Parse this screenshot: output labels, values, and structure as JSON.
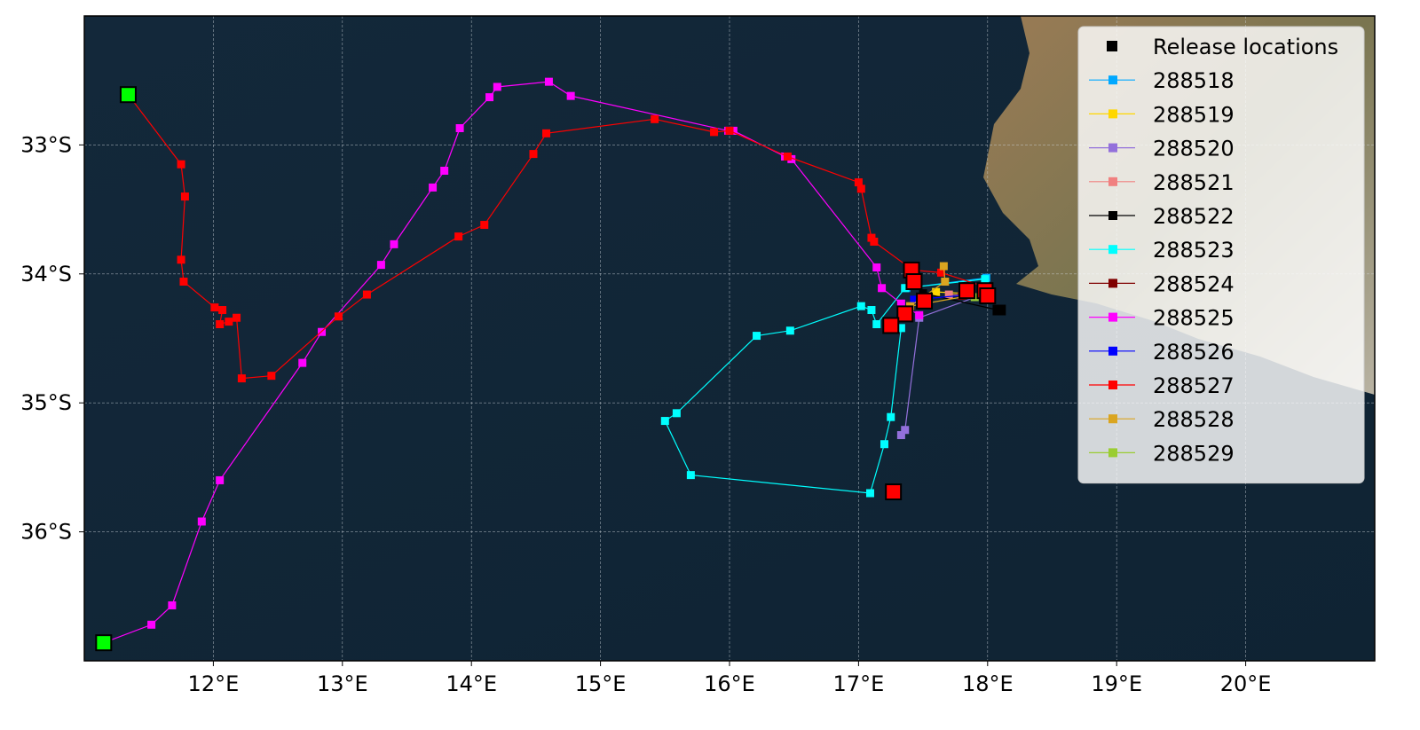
{
  "chart_data": {
    "type": "line",
    "xlim": [
      11,
      21
    ],
    "ylim": [
      -37,
      -32
    ],
    "xticks": [
      {
        "value": 12,
        "label": "12°E"
      },
      {
        "value": 13,
        "label": "13°E"
      },
      {
        "value": 14,
        "label": "14°E"
      },
      {
        "value": 15,
        "label": "15°E"
      },
      {
        "value": 16,
        "label": "16°E"
      },
      {
        "value": 17,
        "label": "17°E"
      },
      {
        "value": 18,
        "label": "18°E"
      },
      {
        "value": 19,
        "label": "19°E"
      },
      {
        "value": 20,
        "label": "20°E"
      }
    ],
    "yticks": [
      {
        "value": -33,
        "label": "33°S"
      },
      {
        "value": -34,
        "label": "34°S"
      },
      {
        "value": -35,
        "label": "35°S"
      },
      {
        "value": -36,
        "label": "36°S"
      }
    ],
    "grid": true,
    "legend": "upper right",
    "release_locations": {
      "name": "Release locations",
      "color": "#000000",
      "x": [
        18.08,
        18.1
      ],
      "y": [
        -34.28,
        -34.28
      ]
    },
    "series": [
      {
        "name": "288518",
        "color": "#00a8ff",
        "x": [
          17.99,
          17.37
        ],
        "y": [
          -34.03,
          -34.11
        ]
      },
      {
        "name": "288519",
        "color": "#ffd700",
        "x": [
          18.0,
          17.6
        ],
        "y": [
          -34.16,
          -34.14
        ]
      },
      {
        "name": "288520",
        "color": "#9370db",
        "x": [
          17.99,
          17.47,
          17.36,
          17.33
        ],
        "y": [
          -34.15,
          -34.34,
          -35.21,
          -35.25
        ]
      },
      {
        "name": "288521",
        "color": "#f08080",
        "x": [
          18.0,
          17.7
        ],
        "y": [
          -34.17,
          -34.16
        ]
      },
      {
        "name": "288522",
        "color": "#000000",
        "x": [
          18.08,
          17.5
        ],
        "y": [
          -34.28,
          -34.15
        ]
      },
      {
        "name": "288523",
        "color": "#00ffff",
        "x": [
          17.98,
          17.36,
          17.14,
          17.1,
          17.02,
          16.47,
          16.21,
          15.59,
          15.5,
          15.7,
          17.09,
          17.2,
          17.25,
          17.33
        ],
        "y": [
          -34.04,
          -34.11,
          -34.39,
          -34.28,
          -34.25,
          -34.44,
          -34.48,
          -35.08,
          -35.14,
          -35.56,
          -35.7,
          -35.32,
          -35.11,
          -34.42
        ]
      },
      {
        "name": "288524",
        "color": "#800000",
        "x": [
          18.0,
          17.8
        ],
        "y": [
          -34.18,
          -34.17
        ]
      },
      {
        "name": "288525",
        "color": "#ff00ff",
        "x": [
          11.15,
          11.52,
          11.68,
          11.91,
          12.05,
          12.69,
          12.84,
          13.3,
          13.4,
          13.7,
          13.79,
          13.91,
          14.14,
          14.2,
          14.6,
          14.77,
          15.99,
          16.03,
          16.43,
          16.48,
          17.14,
          17.18,
          17.33,
          17.47
        ],
        "y": [
          -36.86,
          -36.72,
          -36.57,
          -35.92,
          -35.6,
          -34.69,
          -34.45,
          -33.93,
          -33.77,
          -33.33,
          -33.2,
          -32.87,
          -32.63,
          -32.55,
          -32.51,
          -32.62,
          -32.89,
          -32.89,
          -33.09,
          -33.11,
          -33.95,
          -34.11,
          -34.23,
          -34.32
        ]
      },
      {
        "name": "288526",
        "color": "#0000ff",
        "x": [
          17.98,
          17.43
        ],
        "y": [
          -34.15,
          -34.2
        ]
      },
      {
        "name": "288527",
        "color": "#ff0000",
        "x": [
          11.34,
          11.75,
          11.78,
          11.75,
          11.77,
          12.01,
          12.07,
          12.05,
          12.12,
          12.18,
          12.22,
          12.45,
          12.97,
          13.19,
          13.9,
          14.1,
          14.48,
          14.58,
          15.42,
          15.88,
          16.0,
          16.45,
          17.0,
          17.02,
          17.1,
          17.12,
          17.42,
          17.64,
          17.98
        ],
        "y": [
          -32.61,
          -33.15,
          -33.4,
          -33.89,
          -34.06,
          -34.26,
          -34.28,
          -34.39,
          -34.37,
          -34.34,
          -34.81,
          -34.79,
          -34.33,
          -34.16,
          -33.71,
          -33.62,
          -33.07,
          -32.91,
          -32.8,
          -32.9,
          -32.89,
          -33.09,
          -33.29,
          -33.34,
          -33.72,
          -33.75,
          -33.97,
          -33.99,
          -34.1
        ]
      },
      {
        "name": "288528",
        "color": "#daa520",
        "x": [
          17.66,
          17.67,
          17.4,
          17.97
        ],
        "y": [
          -33.94,
          -34.06,
          -34.25,
          -34.15
        ]
      },
      {
        "name": "288529",
        "color": "#9acd32",
        "x": [
          18.0,
          17.9
        ],
        "y": [
          -34.19,
          -34.18
        ]
      }
    ],
    "highlight_markers": [
      {
        "color": "#ff0000",
        "x": [
          17.41,
          17.43,
          17.51,
          17.36,
          17.25,
          17.84,
          17.98,
          18.0,
          17.27
        ],
        "y": [
          -33.97,
          -34.06,
          -34.21,
          -34.31,
          -34.4,
          -34.13,
          -34.13,
          -34.17,
          -35.69
        ]
      },
      {
        "color": "#00ff00",
        "x": [
          11.15,
          11.34
        ],
        "y": [
          -36.86,
          -32.61
        ]
      }
    ]
  }
}
